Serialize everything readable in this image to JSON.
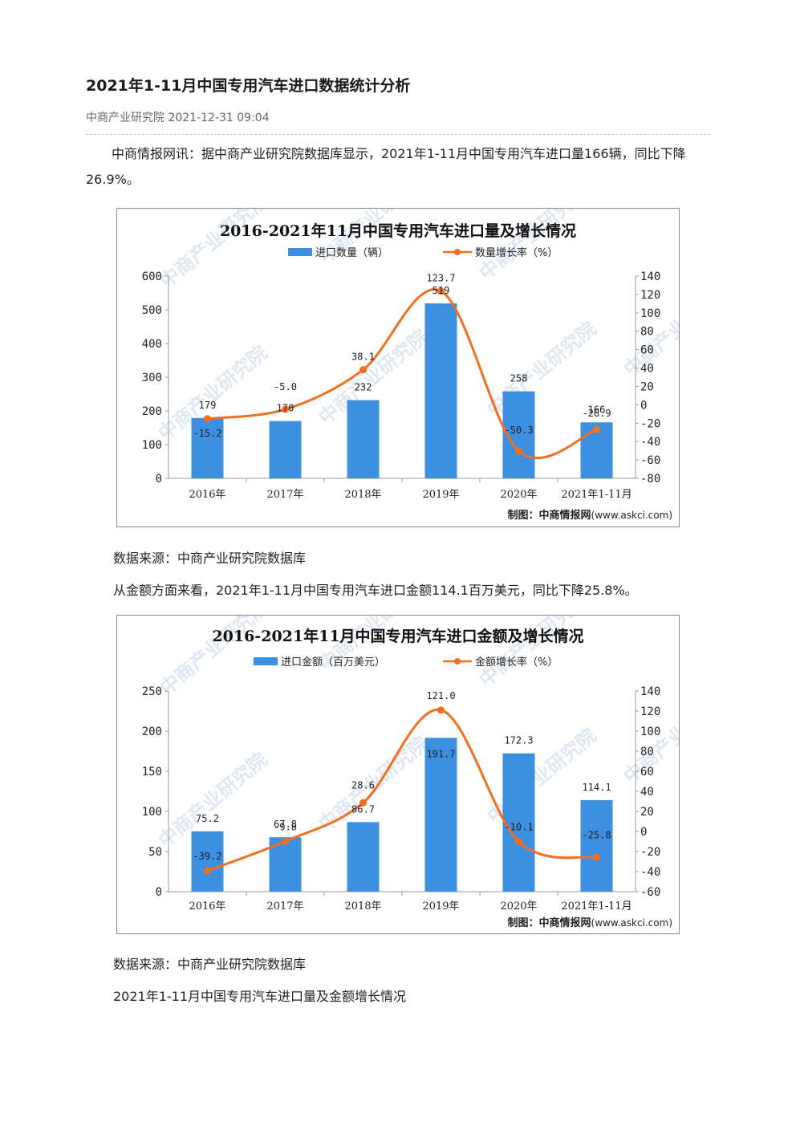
{
  "article": {
    "title": "2021年1-11月中国专用汽车进口数据统计分析",
    "source_line": "中商产业研究院 2021-12-31 09:04",
    "paragraph1": "中商情报网讯：据中商产业研究院数据库显示，2021年1-11月中国专用汽车进口量166辆，同比下降26.9%。",
    "source_note1": "数据来源：中商产业研究院数据库",
    "paragraph2": "从金额方面来看，2021年1-11月中国专用汽车进口金额114.1百万美元，同比下降25.8%。",
    "source_note2": "数据来源：中商产业研究院数据库",
    "paragraph3": "2021年1-11月中国专用汽车进口量及金额增长情况"
  },
  "chart_data": [
    {
      "type": "bar",
      "title": "2016-2021年11月中国专用汽车进口量及增长情况",
      "categories": [
        "2016年",
        "2017年",
        "2018年",
        "2019年",
        "2020年",
        "2021年1-11月"
      ],
      "series": [
        {
          "name": "进口数量（辆）",
          "type": "bar",
          "axis": "left",
          "values": [
            179,
            170,
            232,
            519,
            258,
            166
          ],
          "labels": [
            "179",
            "170",
            "232",
            "519",
            "258",
            "166"
          ],
          "color": "#3d8fe0"
        },
        {
          "name": "数量增长率（%）",
          "type": "line",
          "axis": "right",
          "values": [
            -15.2,
            -5.0,
            38.1,
            123.7,
            -50.3,
            -26.9
          ],
          "labels": [
            "-15.2",
            "-5.0",
            "38.1",
            "123.7",
            "-50.3",
            "-26.9"
          ],
          "color": "#f26f21"
        }
      ],
      "ylim_left": [
        0,
        600
      ],
      "yticks_left": [
        "0",
        "100",
        "200",
        "300",
        "400",
        "500",
        "600"
      ],
      "ylim_right": [
        -80,
        140
      ],
      "yticks_right": [
        "-80",
        "-60",
        "-40",
        "-20",
        "0",
        "20",
        "40",
        "60",
        "80",
        "100",
        "120",
        "140"
      ],
      "source_prefix": "制图：中商情报网",
      "source_site": "(www.askci.com)",
      "watermark": "中商产业研究院",
      "legend_position": "top-center"
    },
    {
      "type": "bar",
      "title": "2016-2021年11月中国专用汽车进口金额及增长情况",
      "categories": [
        "2016年",
        "2017年",
        "2018年",
        "2019年",
        "2020年",
        "2021年1-11月"
      ],
      "series": [
        {
          "name": "进口金额（百万美元）",
          "type": "bar",
          "axis": "left",
          "values": [
            75.2,
            67.8,
            86.7,
            191.7,
            172.3,
            114.1
          ],
          "labels": [
            "75.2",
            "67.8",
            "86.7",
            "191.7",
            "172.3",
            "114.1"
          ],
          "color": "#3d8fe0"
        },
        {
          "name": "金额增长率（%）",
          "type": "line",
          "axis": "right",
          "values": [
            -39.2,
            -9.8,
            28.6,
            121.0,
            -10.1,
            -25.8
          ],
          "labels": [
            "-39.2",
            "-9.8",
            "28.6",
            "121.0",
            "-10.1",
            "-25.8"
          ],
          "color": "#f26f21"
        }
      ],
      "ylim_left": [
        0,
        250
      ],
      "yticks_left": [
        "0",
        "50",
        "100",
        "150",
        "200",
        "250"
      ],
      "ylim_right": [
        -60,
        140
      ],
      "yticks_right": [
        "-60",
        "-40",
        "-20",
        "0",
        "20",
        "40",
        "60",
        "80",
        "100",
        "120",
        "140"
      ],
      "source_prefix": "制图：中商情报网",
      "source_site": "(www.askci.com)",
      "watermark": "中商产业研究院",
      "legend_position": "top-center"
    }
  ]
}
